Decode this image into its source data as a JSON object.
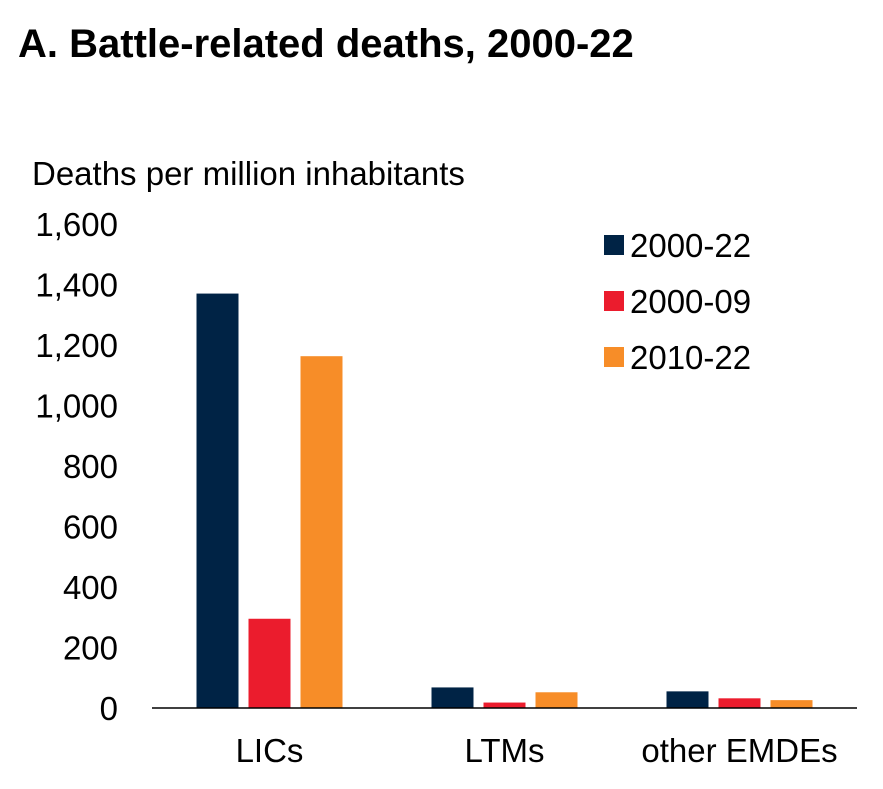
{
  "chart_data": {
    "type": "bar",
    "title": "A. Battle-related deaths, 2000-22",
    "ylabel": "Deaths per million inhabitants",
    "xlabel": "",
    "ylim": [
      0,
      1600
    ],
    "yticks": [
      0,
      200,
      400,
      600,
      800,
      1000,
      1200,
      1400,
      1600
    ],
    "ytick_labels": [
      "0",
      "200",
      "400",
      "600",
      "800",
      "1,000",
      "1,200",
      "1,400",
      "1,600"
    ],
    "categories": [
      "LICs",
      "LTMs",
      "other EMDEs"
    ],
    "series": [
      {
        "name": "2000-22",
        "color": "#002345",
        "values": [
          1370,
          68,
          55
        ]
      },
      {
        "name": "2000-09",
        "color": "#EB1C2D",
        "values": [
          295,
          18,
          32
        ]
      },
      {
        "name": "2010-22",
        "color": "#F78D28",
        "values": [
          1163,
          52,
          26
        ]
      }
    ],
    "grid": false,
    "legend_position": "top-right"
  }
}
